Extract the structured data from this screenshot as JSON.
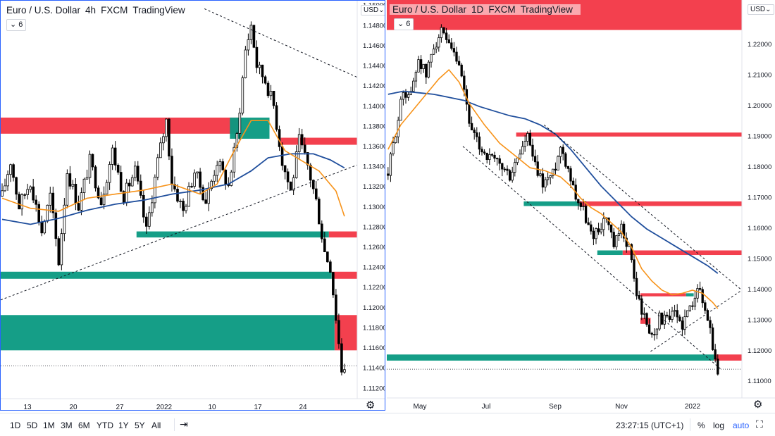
{
  "left": {
    "legend": {
      "symbol": "Euro / U.S. Dollar",
      "interval": "4h",
      "exchange": "FXCM",
      "source": "TradingView"
    },
    "badge": "6",
    "currency": "USD",
    "chart_data": {
      "type": "candlestick",
      "y_ticks": [
        "1.14800",
        "1.14600",
        "1.14400",
        "1.14200",
        "1.14000",
        "1.13800",
        "1.13600",
        "1.13400",
        "1.13200",
        "1.13000",
        "1.12800",
        "1.12600",
        "1.12400",
        "1.12200",
        "1.12000",
        "1.11800",
        "1.11600",
        "1.11400",
        "1.11200"
      ],
      "y_top_partial": "1.15000",
      "x_ticks": [
        "13",
        "20",
        "27",
        "2022",
        "10",
        "17",
        "24"
      ],
      "ylim": [
        1.1109,
        1.1504
      ],
      "price_path": [
        [
          0,
          1.131
        ],
        [
          3,
          1.1345
        ],
        [
          6,
          1.13
        ],
        [
          10,
          1.1325
        ],
        [
          14,
          1.1275
        ],
        [
          17,
          1.131
        ],
        [
          20,
          1.1245
        ],
        [
          23,
          1.1335
        ],
        [
          27,
          1.13
        ],
        [
          31,
          1.1345
        ],
        [
          35,
          1.1305
        ],
        [
          39,
          1.1355
        ],
        [
          43,
          1.131
        ],
        [
          47,
          1.1335
        ],
        [
          51,
          1.1275
        ],
        [
          55,
          1.1345
        ],
        [
          58,
          1.1385
        ],
        [
          60,
          1.1325
        ],
        [
          64,
          1.1295
        ],
        [
          68,
          1.1335
        ],
        [
          72,
          1.1305
        ],
        [
          76,
          1.1345
        ],
        [
          80,
          1.132
        ],
        [
          83,
          1.137
        ],
        [
          86,
          1.1455
        ],
        [
          88,
          1.148
        ],
        [
          90,
          1.144
        ],
        [
          93,
          1.1425
        ],
        [
          96,
          1.14
        ],
        [
          99,
          1.1345
        ],
        [
          102,
          1.1315
        ],
        [
          105,
          1.1365
        ],
        [
          108,
          1.134
        ],
        [
          111,
          1.1305
        ],
        [
          114,
          1.1255
        ],
        [
          116,
          1.124
        ],
        [
          118,
          1.119
        ],
        [
          120,
          1.1138
        ],
        [
          121,
          1.1142
        ]
      ],
      "zones": [
        {
          "color": "red",
          "x0": 0,
          "x1": 84,
          "y0": 1.1388,
          "y1": 1.1372
        },
        {
          "color": "green",
          "x0": 81,
          "x1": 95,
          "y0": 1.1388,
          "y1": 1.1367
        },
        {
          "color": "red",
          "x0": 99,
          "x1": 126,
          "y0": 1.1368,
          "y1": 1.1361
        },
        {
          "color": "green",
          "x0": 48,
          "x1": 116,
          "y0": 1.1275,
          "y1": 1.1269
        },
        {
          "color": "red",
          "x0": 116,
          "x1": 126,
          "y0": 1.1275,
          "y1": 1.1269
        },
        {
          "color": "green",
          "x0": 0,
          "x1": 117,
          "y0": 1.1235,
          "y1": 1.1228
        },
        {
          "color": "red",
          "x0": 117,
          "x1": 126,
          "y0": 1.1235,
          "y1": 1.1228
        },
        {
          "color": "green",
          "x0": 0,
          "x1": 118,
          "y0": 1.1192,
          "y1": 1.1157
        },
        {
          "color": "red",
          "x0": 118,
          "x1": 126,
          "y0": 1.1192,
          "y1": 1.1157
        }
      ],
      "ma_fast": [
        [
          0,
          1.1308
        ],
        [
          10,
          1.1298
        ],
        [
          20,
          1.1295
        ],
        [
          30,
          1.1308
        ],
        [
          40,
          1.1312
        ],
        [
          50,
          1.1316
        ],
        [
          60,
          1.1322
        ],
        [
          70,
          1.1312
        ],
        [
          76,
          1.1322
        ],
        [
          82,
          1.1355
        ],
        [
          88,
          1.1385
        ],
        [
          94,
          1.1385
        ],
        [
          100,
          1.1355
        ],
        [
          106,
          1.1345
        ],
        [
          112,
          1.1335
        ],
        [
          118,
          1.1315
        ],
        [
          121,
          1.129
        ]
      ],
      "ma_slow": [
        [
          0,
          1.1287
        ],
        [
          10,
          1.1282
        ],
        [
          20,
          1.1288
        ],
        [
          30,
          1.1296
        ],
        [
          40,
          1.1302
        ],
        [
          50,
          1.1306
        ],
        [
          60,
          1.1312
        ],
        [
          70,
          1.1316
        ],
        [
          80,
          1.1322
        ],
        [
          88,
          1.1335
        ],
        [
          94,
          1.1348
        ],
        [
          102,
          1.1352
        ],
        [
          110,
          1.1352
        ],
        [
          116,
          1.1346
        ],
        [
          121,
          1.1338
        ]
      ],
      "trend_lines": [
        {
          "x0": 0,
          "y0": 1.1207,
          "x1": 126,
          "y1": 1.1341
        },
        {
          "x0": 72,
          "y0": 1.1496,
          "x1": 126,
          "y1": 1.1428
        }
      ],
      "last_price_line": 1.11415
    }
  },
  "right": {
    "legend": {
      "symbol": "Euro / U.S. Dollar",
      "interval": "1D",
      "exchange": "FXCM",
      "source": "TradingView"
    },
    "badge": "6",
    "currency": "USD",
    "chart_data": {
      "type": "candlestick",
      "y_ticks": [
        "1.22000",
        "1.21000",
        "1.20000",
        "1.19000",
        "1.18000",
        "1.17000",
        "1.16000",
        "1.15000",
        "1.14000",
        "1.13000",
        "1.12000",
        "1.11000"
      ],
      "x_ticks": [
        "May",
        "Jul",
        "Sep",
        "Nov",
        "2022"
      ],
      "ylim": [
        1.1043,
        1.2343
      ],
      "price_path": [
        [
          0,
          1.1775
        ],
        [
          3,
          1.1915
        ],
        [
          6,
          1.2045
        ],
        [
          9,
          1.2035
        ],
        [
          12,
          1.2155
        ],
        [
          15,
          1.2095
        ],
        [
          18,
          1.2195
        ],
        [
          21,
          1.2235
        ],
        [
          24,
          1.2185
        ],
        [
          27,
          1.2145
        ],
        [
          30,
          1.2045
        ],
        [
          33,
          1.1905
        ],
        [
          36,
          1.1865
        ],
        [
          40,
          1.1825
        ],
        [
          44,
          1.1805
        ],
        [
          48,
          1.1765
        ],
        [
          52,
          1.1845
        ],
        [
          55,
          1.1895
        ],
        [
          58,
          1.1795
        ],
        [
          61,
          1.1745
        ],
        [
          65,
          1.1775
        ],
        [
          68,
          1.1865
        ],
        [
          71,
          1.1795
        ],
        [
          74,
          1.1705
        ],
        [
          77,
          1.1655
        ],
        [
          80,
          1.1575
        ],
        [
          83,
          1.1595
        ],
        [
          86,
          1.1635
        ],
        [
          89,
          1.1535
        ],
        [
          92,
          1.1595
        ],
        [
          95,
          1.1535
        ],
        [
          98,
          1.1385
        ],
        [
          101,
          1.1305
        ],
        [
          104,
          1.1245
        ],
        [
          107,
          1.1305
        ],
        [
          110,
          1.1295
        ],
        [
          113,
          1.1315
        ],
        [
          116,
          1.1285
        ],
        [
          119,
          1.1335
        ],
        [
          122,
          1.1415
        ],
        [
          124,
          1.1355
        ],
        [
          127,
          1.1275
        ],
        [
          129,
          1.1155
        ],
        [
          130,
          1.1136
        ]
      ],
      "zones": [
        {
          "color": "red",
          "x0": 0,
          "x1": 140,
          "y0": 1.2365,
          "y1": 1.2245
        },
        {
          "color": "red",
          "x0": 51,
          "x1": 140,
          "y0": 1.191,
          "y1": 1.1897
        },
        {
          "color": "green",
          "x0": 54,
          "x1": 76,
          "y0": 1.1685,
          "y1": 1.167
        },
        {
          "color": "red",
          "x0": 76,
          "x1": 140,
          "y0": 1.1685,
          "y1": 1.167
        },
        {
          "color": "green",
          "x0": 83,
          "x1": 93,
          "y0": 1.1525,
          "y1": 1.151
        },
        {
          "color": "red",
          "x0": 93,
          "x1": 140,
          "y0": 1.1525,
          "y1": 1.151
        },
        {
          "color": "red",
          "x0": 100,
          "x1": 118,
          "y0": 1.1385,
          "y1": 1.1375
        },
        {
          "color": "green",
          "x0": 118,
          "x1": 121,
          "y0": 1.1385,
          "y1": 1.1375
        },
        {
          "color": "red",
          "x0": 100,
          "x1": 104,
          "y0": 1.1305,
          "y1": 1.1285
        },
        {
          "color": "green",
          "x0": 0,
          "x1": 129,
          "y0": 1.1185,
          "y1": 1.1165
        },
        {
          "color": "red",
          "x0": 129,
          "x1": 140,
          "y0": 1.1185,
          "y1": 1.1165
        }
      ],
      "ma_fast": [
        [
          0,
          1.1855
        ],
        [
          5,
          1.1935
        ],
        [
          10,
          1.1985
        ],
        [
          15,
          1.2035
        ],
        [
          20,
          1.2085
        ],
        [
          24,
          1.2115
        ],
        [
          28,
          1.2075
        ],
        [
          32,
          1.2005
        ],
        [
          38,
          1.1935
        ],
        [
          44,
          1.1875
        ],
        [
          50,
          1.1835
        ],
        [
          56,
          1.1795
        ],
        [
          62,
          1.1785
        ],
        [
          68,
          1.1765
        ],
        [
          72,
          1.1735
        ],
        [
          76,
          1.1695
        ],
        [
          80,
          1.1665
        ],
        [
          84,
          1.1645
        ],
        [
          88,
          1.1615
        ],
        [
          92,
          1.1585
        ],
        [
          96,
          1.1535
        ],
        [
          100,
          1.1465
        ],
        [
          104,
          1.1425
        ],
        [
          108,
          1.1395
        ],
        [
          112,
          1.138
        ],
        [
          116,
          1.1385
        ],
        [
          120,
          1.1395
        ],
        [
          124,
          1.1385
        ],
        [
          128,
          1.1355
        ],
        [
          130,
          1.1335
        ]
      ],
      "ma_slow": [
        [
          0,
          1.2035
        ],
        [
          6,
          1.2045
        ],
        [
          12,
          1.204
        ],
        [
          18,
          1.2035
        ],
        [
          24,
          1.2025
        ],
        [
          30,
          1.2015
        ],
        [
          36,
          1.1995
        ],
        [
          42,
          1.198
        ],
        [
          48,
          1.1965
        ],
        [
          54,
          1.1955
        ],
        [
          60,
          1.1935
        ],
        [
          66,
          1.1905
        ],
        [
          72,
          1.1855
        ],
        [
          78,
          1.1795
        ],
        [
          84,
          1.1735
        ],
        [
          90,
          1.1685
        ],
        [
          96,
          1.1635
        ],
        [
          102,
          1.1595
        ],
        [
          108,
          1.1565
        ],
        [
          114,
          1.1535
        ],
        [
          120,
          1.1505
        ],
        [
          126,
          1.1475
        ],
        [
          130,
          1.145
        ]
      ],
      "trend_lines": [
        {
          "x0": 30,
          "y0": 1.1865,
          "x1": 132,
          "y1": 1.1135
        },
        {
          "x0": 62,
          "y0": 1.1935,
          "x1": 140,
          "y1": 1.1395
        },
        {
          "x0": 104,
          "y0": 1.1195,
          "x1": 140,
          "y1": 1.1395
        }
      ],
      "last_price_line": 1.1137
    }
  },
  "bottom_bar": {
    "ranges": [
      "1D",
      "5D",
      "1M",
      "3M",
      "6M",
      "YTD",
      "1Y",
      "5Y",
      "All"
    ],
    "time": "23:27:15 (UTC+1)",
    "percent": "%",
    "log": "log",
    "auto": "auto"
  },
  "colors": {
    "up": "#ffffff",
    "down": "#000000",
    "wick": "#000000",
    "red_zone": "#f23645",
    "green_zone": "#089981",
    "ma_fast": "#f7931a",
    "ma_slow": "#1f4e9c",
    "border_active": "#2962ff"
  }
}
